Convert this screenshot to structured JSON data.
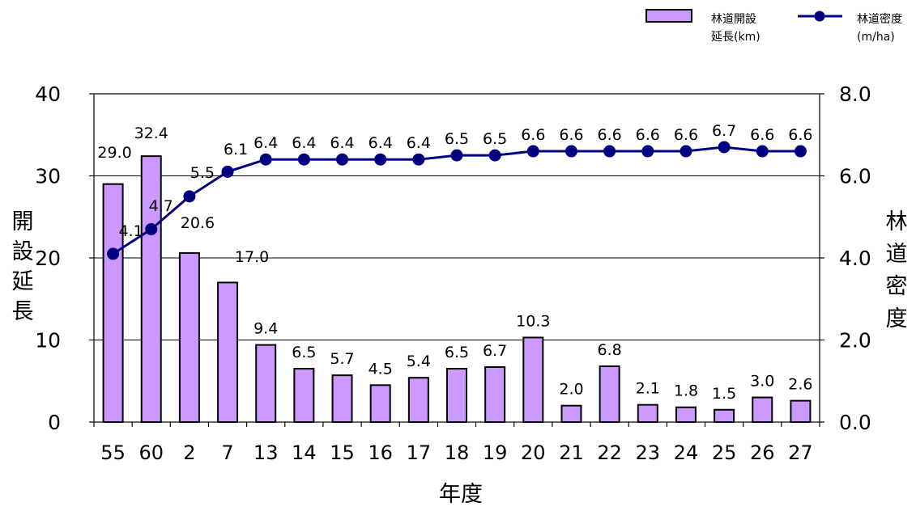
{
  "chart_data": {
    "type": "bar",
    "categories": [
      "55",
      "60",
      "2",
      "7",
      "13",
      "14",
      "15",
      "16",
      "17",
      "18",
      "19",
      "20",
      "21",
      "22",
      "23",
      "24",
      "25",
      "26",
      "27"
    ],
    "series": [
      {
        "name": "林道開設延長(km)",
        "type": "bar",
        "axis": "left",
        "color": "#cc99ff",
        "values": [
          29.0,
          32.4,
          20.6,
          17.0,
          9.4,
          6.5,
          5.7,
          4.5,
          5.4,
          6.5,
          6.7,
          10.3,
          2.0,
          6.8,
          2.1,
          1.8,
          1.5,
          3.0,
          2.6
        ],
        "labels": [
          "29.0",
          "32.4",
          "20.6",
          "17.0",
          "9.4",
          "6.5",
          "5.7",
          "4.5",
          "5.4",
          "6.5",
          "6.7",
          "10.3",
          "2.0",
          "6.8",
          "2.1",
          "1.8",
          "1.5",
          "3.0",
          "2.6"
        ]
      },
      {
        "name": "林道密度(m/ha)",
        "type": "line",
        "axis": "right",
        "color": "#000080",
        "values": [
          4.1,
          4.7,
          5.5,
          6.1,
          6.4,
          6.4,
          6.4,
          6.4,
          6.4,
          6.5,
          6.5,
          6.6,
          6.6,
          6.6,
          6.6,
          6.6,
          6.7,
          6.6,
          6.6
        ],
        "labels": [
          "4.1",
          "4.7",
          "5.5",
          "6.1",
          "6.4",
          "6.4",
          "6.4",
          "6.4",
          "6.4",
          "6.5",
          "6.5",
          "6.6",
          "6.6",
          "6.6",
          "6.6",
          "6.6",
          "6.7",
          "6.6",
          "6.6"
        ]
      }
    ],
    "xlabel": "年度",
    "ylabel": "開設延長",
    "y2label": "林道密度",
    "ylim": [
      0,
      40
    ],
    "y2lim": [
      0,
      8
    ],
    "yticks": [
      "0",
      "10",
      "20",
      "30",
      "40"
    ],
    "y2ticks": [
      "0.0",
      "2.0",
      "4.0",
      "6.0",
      "8.0"
    ],
    "legend": {
      "placement": "top-right",
      "items": [
        {
          "line1": "林道開設",
          "line2": "延長(km)"
        },
        {
          "line1": "林道密度",
          "line2": "(m/ha)"
        }
      ]
    },
    "grid": true
  }
}
